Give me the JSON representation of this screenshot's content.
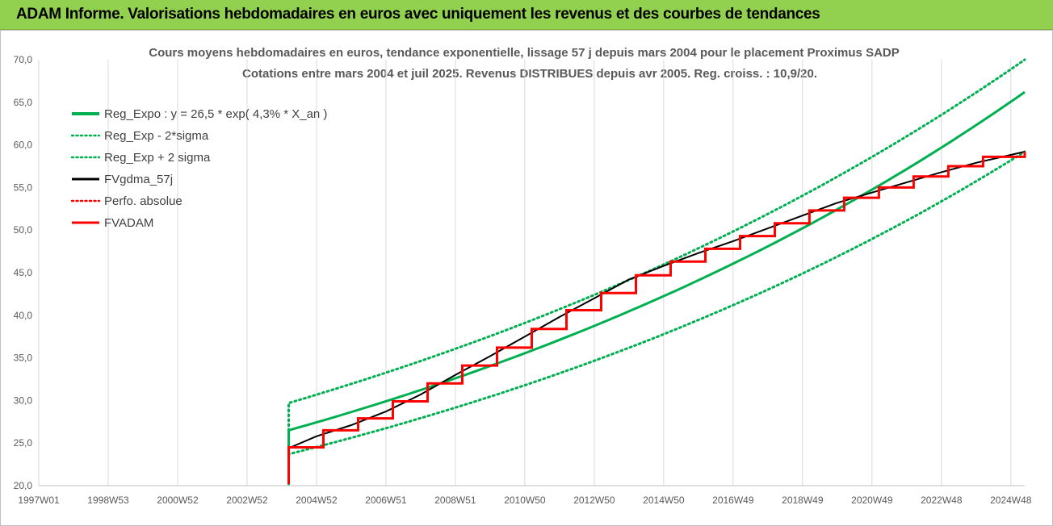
{
  "header": {
    "title": "ADAM Informe. Valorisations hebdomadaires en euros avec uniquement les revenus et des courbes de tendances"
  },
  "chart_data": {
    "type": "line",
    "title": "Cours moyens hebdomadaires en euros, tendance exponentielle, lissage 57 j depuis mars 2004 pour le placement Proximus SADP",
    "subtitle": "Cotations entre mars 2004 et juil 2025. Revenus DISTRIBUES depuis avr 2005. Reg. croiss. : 10,9/20.",
    "xlim": [
      1997.0,
      2025.4
    ],
    "ylim": [
      20,
      70
    ],
    "yticks": [
      "20,0",
      "25,0",
      "30,0",
      "35,0",
      "40,0",
      "45,0",
      "50,0",
      "55,0",
      "60,0",
      "65,0",
      "70,0"
    ],
    "xticks": [
      {
        "x": 1997.0,
        "label": "1997W01"
      },
      {
        "x": 1999.0,
        "label": "1998W53"
      },
      {
        "x": 2001.0,
        "label": "2000W52"
      },
      {
        "x": 2003.0,
        "label": "2002W52"
      },
      {
        "x": 2005.0,
        "label": "2004W52"
      },
      {
        "x": 2007.0,
        "label": "2006W51"
      },
      {
        "x": 2009.0,
        "label": "2008W51"
      },
      {
        "x": 2011.0,
        "label": "2010W50"
      },
      {
        "x": 2013.0,
        "label": "2012W50"
      },
      {
        "x": 2015.0,
        "label": "2014W50"
      },
      {
        "x": 2017.0,
        "label": "2016W49"
      },
      {
        "x": 2019.0,
        "label": "2018W49"
      },
      {
        "x": 2021.0,
        "label": "2020W49"
      },
      {
        "x": 2023.0,
        "label": "2022W48"
      },
      {
        "x": 2025.0,
        "label": "2024W48"
      }
    ],
    "grid": "vertical",
    "legend_position": "top-left",
    "series": [
      {
        "name": "Reg_Expo : y = 26,5 * exp( 4,3% *  X_an )",
        "color": "#00b050",
        "style": "solid",
        "x": [
          2004.2,
          2004.2,
          2025.4
        ],
        "y": [
          20.2,
          26.5,
          66.2
        ]
      },
      {
        "name": "Reg_Exp - 2*sigma",
        "color": "#00b050",
        "style": "dotted",
        "x": [
          2004.2,
          2004.2,
          2025.4
        ],
        "y": [
          20.2,
          23.7,
          59.2
        ]
      },
      {
        "name": "Reg_Exp + 2 sigma",
        "color": "#00b050",
        "style": "dotted",
        "x": [
          2004.2,
          2004.2,
          2025.4
        ],
        "y": [
          20.2,
          29.7,
          70.0
        ]
      },
      {
        "name": "FVgdma_57j",
        "color": "#000000",
        "style": "solid",
        "x": [
          2004.2,
          2004.2,
          2005.0,
          2006.0,
          2007.0,
          2008.0,
          2009.0,
          2010.0,
          2011.0,
          2012.0,
          2013.0,
          2014.0,
          2015.0,
          2016.0,
          2017.0,
          2018.0,
          2019.0,
          2020.0,
          2021.0,
          2022.0,
          2023.0,
          2024.0,
          2025.4
        ],
        "y": [
          20.2,
          24.4,
          25.8,
          27.1,
          28.7,
          30.7,
          33.0,
          35.2,
          37.5,
          39.8,
          42.0,
          44.2,
          45.8,
          47.3,
          48.7,
          50.2,
          51.7,
          53.2,
          54.4,
          55.6,
          56.8,
          57.9,
          59.2
        ]
      },
      {
        "name": "Perfo. absolue",
        "color": "#ff0000",
        "style": "dotted",
        "x": [],
        "y": []
      },
      {
        "name": "FVADAM",
        "color": "#ff0000",
        "style": "solid",
        "width": 3,
        "x": [
          2004.2,
          2004.2,
          2005.2,
          2006.2,
          2007.2,
          2008.2,
          2009.2,
          2010.2,
          2011.2,
          2012.2,
          2013.2,
          2014.2,
          2015.2,
          2016.2,
          2017.2,
          2018.2,
          2019.2,
          2020.2,
          2021.2,
          2022.2,
          2023.2,
          2024.2,
          2025.4
        ],
        "y": [
          20.2,
          24.5,
          26.5,
          27.9,
          29.9,
          32.0,
          34.1,
          36.2,
          38.4,
          40.6,
          42.6,
          44.7,
          46.3,
          47.8,
          49.3,
          50.8,
          52.3,
          53.8,
          55.0,
          56.3,
          57.5,
          58.6,
          59.2
        ],
        "stepped": true
      }
    ]
  }
}
